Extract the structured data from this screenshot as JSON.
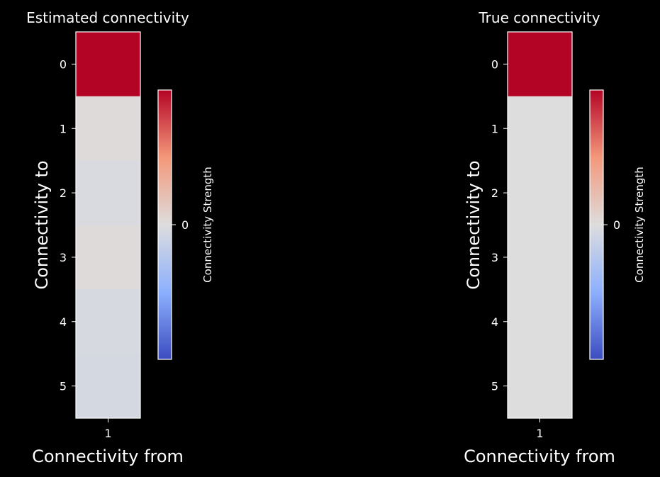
{
  "chart_data": [
    {
      "type": "heatmap",
      "title": "Estimated connectivity",
      "xlabel": "Connectivity from",
      "ylabel": "Connectivity to",
      "x_ticks": [
        "1"
      ],
      "y_ticks": [
        "0",
        "1",
        "2",
        "3",
        "4",
        "5"
      ],
      "values": [
        [
          1.0
        ],
        [
          0.02
        ],
        [
          -0.03
        ],
        [
          0.02
        ],
        [
          -0.04
        ],
        [
          -0.06
        ]
      ],
      "colormap": "coolwarm",
      "vlim": [
        -1,
        1
      ],
      "colorbar": {
        "label": "Connectivity Strength",
        "ticks": [
          "0"
        ]
      }
    },
    {
      "type": "heatmap",
      "title": "True connectivity",
      "xlabel": "Connectivity from",
      "ylabel": "Connectivity to",
      "x_ticks": [
        "1"
      ],
      "y_ticks": [
        "0",
        "1",
        "2",
        "3",
        "4",
        "5"
      ],
      "values": [
        [
          1.0
        ],
        [
          0.0
        ],
        [
          0.0
        ],
        [
          0.0
        ],
        [
          0.0
        ],
        [
          0.0
        ]
      ],
      "colormap": "coolwarm",
      "vlim": [
        -1,
        1
      ],
      "colorbar": {
        "label": "Connectivity Strength",
        "ticks": [
          "0"
        ]
      }
    }
  ]
}
